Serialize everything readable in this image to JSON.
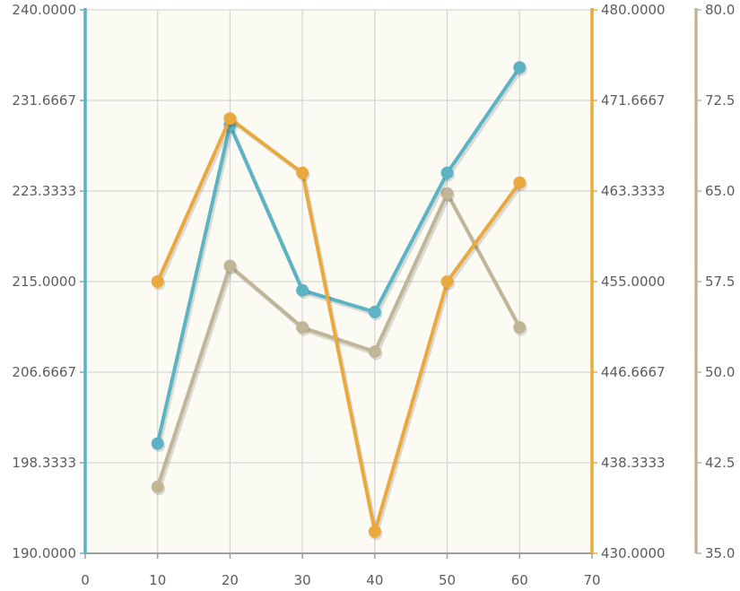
{
  "chart_data": {
    "type": "line",
    "title": "",
    "xlabel": "",
    "x": [
      10,
      20,
      30,
      40,
      50,
      60
    ],
    "xlim": [
      0,
      70
    ],
    "x_ticks": [
      "0",
      "10",
      "20",
      "30",
      "40",
      "50",
      "60",
      "70"
    ],
    "grid": true,
    "legend": "none",
    "background": "#fbfbf4",
    "axes": [
      {
        "id": "left",
        "side": "left",
        "color": "#5bb3c4",
        "ylim": [
          190,
          240
        ],
        "ticks": [
          "190.0000",
          "198.3333",
          "206.6667",
          "215.0000",
          "223.3333",
          "231.6667",
          "240.0000"
        ]
      },
      {
        "id": "right1",
        "side": "right",
        "color": "#eaa93e",
        "ylim": [
          430,
          480
        ],
        "ticks": [
          "430.0000",
          "438.3333",
          "446.6667",
          "455.0000",
          "463.3333",
          "471.6667",
          "480.0000"
        ]
      },
      {
        "id": "right2",
        "side": "right-outer",
        "color": "#c0b596",
        "ylim": [
          35,
          80
        ],
        "ticks": [
          "35.0",
          "42.5",
          "50.0",
          "57.5",
          "65.0",
          "72.5",
          "80.0"
        ]
      }
    ],
    "series": [
      {
        "axis": "right2",
        "color": "#c0b596",
        "values": [
          40.5,
          58.8,
          53.7,
          51.7,
          64.8,
          53.7
        ]
      },
      {
        "axis": "left",
        "color": "#5bb3c4",
        "values": [
          200.1,
          229.4,
          214.2,
          212.2,
          225.0,
          234.7
        ]
      },
      {
        "axis": "right1",
        "color": "#eaa93e",
        "values": [
          455.0,
          470.0,
          465.0,
          432.0,
          455.0,
          464.1
        ]
      }
    ]
  }
}
